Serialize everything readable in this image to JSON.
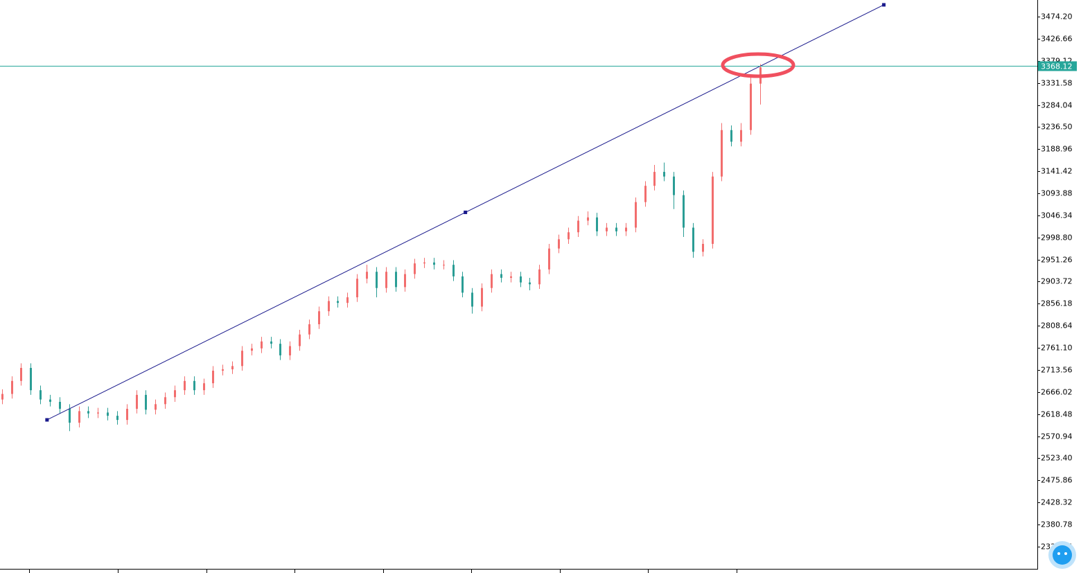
{
  "chart_data": {
    "type": "candlestick",
    "up_color": "#f26d6d",
    "down_color": "#2a9d95",
    "xlim": [
      -0.2,
      107.9
    ],
    "ylim": [
      2285.5,
      3510
    ],
    "yticks": [
      {
        "value": 3474.2,
        "label": "3474.20"
      },
      3426.66,
      3379.12,
      3331.58,
      3284.04,
      {
        "value": 3236.5,
        "label": "3236.50"
      },
      3188.96,
      3141.42,
      3093.88,
      3046.34,
      {
        "value": 2998.8,
        "label": "2998.80"
      },
      2951.26,
      2903.72,
      2856.18,
      2808.64,
      {
        "value": 2761.1,
        "label": "2761.10"
      },
      2713.56,
      2666.02,
      2618.48,
      2570.94,
      {
        "value": 2523.4,
        "label": "2523.40"
      },
      2475.86,
      2428.32,
      2380.78,
      2333.24
    ],
    "open": [
      2650,
      2662,
      2690,
      2718,
      2670,
      2650,
      2645,
      2630,
      2600,
      2625,
      2620,
      2622,
      2615,
      2606,
      2630,
      2660,
      2628,
      2640,
      2655,
      2670,
      2690,
      2670,
      2685,
      2712,
      2715,
      2722,
      2755,
      2760,
      2775,
      2770,
      2745,
      2765,
      2790,
      2812,
      2840,
      2862,
      2858,
      2870,
      2910,
      2925,
      2890,
      2925,
      2892,
      2920,
      2943,
      2945,
      2940,
      2940,
      2915,
      2880,
      2850,
      2890,
      2920,
      2912,
      2915,
      2902,
      2898,
      2930,
      2975,
      2995,
      3010,
      3035,
      3042,
      3012,
      3020,
      3012,
      3020,
      3075,
      3110,
      3140,
      3130,
      3090,
      3020,
      2968,
      2985,
      3130,
      3230,
      3205,
      3230,
      3330
    ],
    "high": [
      2672,
      2700,
      2728,
      2728,
      2680,
      2660,
      2655,
      2640,
      2635,
      2635,
      2632,
      2632,
      2625,
      2640,
      2670,
      2670,
      2650,
      2665,
      2680,
      2700,
      2700,
      2695,
      2722,
      2725,
      2732,
      2765,
      2770,
      2785,
      2785,
      2780,
      2775,
      2800,
      2822,
      2850,
      2872,
      2872,
      2880,
      2920,
      2940,
      2935,
      2935,
      2935,
      2930,
      2953,
      2955,
      2955,
      2950,
      2950,
      2925,
      2890,
      2900,
      2930,
      2930,
      2925,
      2925,
      2912,
      2940,
      2985,
      3005,
      3020,
      3045,
      3055,
      3052,
      3030,
      3030,
      3030,
      3085,
      3120,
      3155,
      3160,
      3140,
      3100,
      3030,
      2995,
      3140,
      3245,
      3240,
      3245,
      3345,
      3372
    ],
    "low": [
      2640,
      2652,
      2680,
      2660,
      2640,
      2635,
      2620,
      2582,
      2590,
      2610,
      2610,
      2605,
      2596,
      2596,
      2620,
      2618,
      2618,
      2630,
      2645,
      2660,
      2660,
      2660,
      2675,
      2702,
      2705,
      2712,
      2745,
      2750,
      2760,
      2735,
      2735,
      2755,
      2780,
      2802,
      2830,
      2848,
      2848,
      2860,
      2900,
      2870,
      2880,
      2882,
      2882,
      2910,
      2933,
      2930,
      2930,
      2905,
      2870,
      2835,
      2840,
      2880,
      2902,
      2902,
      2892,
      2885,
      2888,
      2920,
      2965,
      2985,
      3000,
      3025,
      3002,
      3002,
      3002,
      3002,
      3010,
      3065,
      3100,
      3120,
      3060,
      3000,
      2955,
      2958,
      2975,
      3120,
      3195,
      3195,
      3220,
      3285
    ],
    "close": [
      2662,
      2690,
      2718,
      2670,
      2650,
      2645,
      2630,
      2600,
      2625,
      2620,
      2622,
      2615,
      2606,
      2630,
      2660,
      2628,
      2640,
      2655,
      2670,
      2690,
      2670,
      2685,
      2712,
      2715,
      2722,
      2755,
      2760,
      2775,
      2770,
      2745,
      2765,
      2790,
      2812,
      2840,
      2862,
      2858,
      2870,
      2910,
      2925,
      2890,
      2925,
      2892,
      2920,
      2943,
      2945,
      2940,
      2940,
      2915,
      2880,
      2850,
      2890,
      2920,
      2912,
      2915,
      2902,
      2898,
      2930,
      2975,
      2995,
      3010,
      3035,
      3042,
      3012,
      3020,
      3012,
      3020,
      3075,
      3110,
      3140,
      3130,
      3090,
      3020,
      2968,
      2985,
      3130,
      3230,
      3205,
      3230,
      3330,
      3365
    ],
    "current_price": 3368.12,
    "current_price_color": "#26a69a",
    "trendline": {
      "x": [
        4.7,
        91.9
      ],
      "y": [
        2606.2,
        3499.6
      ],
      "color": "#1a1a8c"
    }
  }
}
